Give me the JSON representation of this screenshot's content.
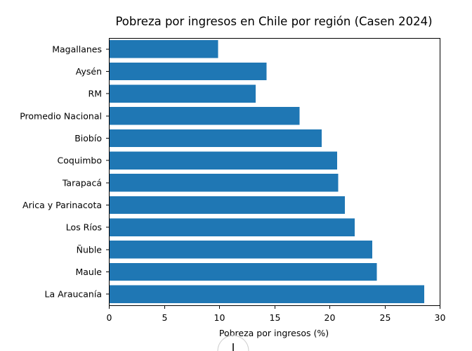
{
  "chart_data": {
    "type": "bar",
    "orientation": "horizontal",
    "title": "Pobreza por ingresos en Chile por región (Casen 2024)",
    "xlabel": "Pobreza por ingresos (%)",
    "ylabel": "",
    "categories": [
      "Magallanes",
      "Aysén",
      "RM",
      "Promedio Nacional",
      "Biobío",
      "Coquimbo",
      "Tarapacá",
      "Arica y Parinacota",
      "Los Ríos",
      "Ñuble",
      "Maule",
      "La Araucanía"
    ],
    "values": [
      9.9,
      14.3,
      13.3,
      17.3,
      19.3,
      20.7,
      20.8,
      21.4,
      22.3,
      23.9,
      24.3,
      28.6
    ],
    "xlim": [
      0,
      30
    ],
    "xticks": [
      0,
      5,
      10,
      15,
      20,
      25,
      30
    ],
    "bar_color": "#1f77b4",
    "grid": false,
    "legend": "none"
  }
}
